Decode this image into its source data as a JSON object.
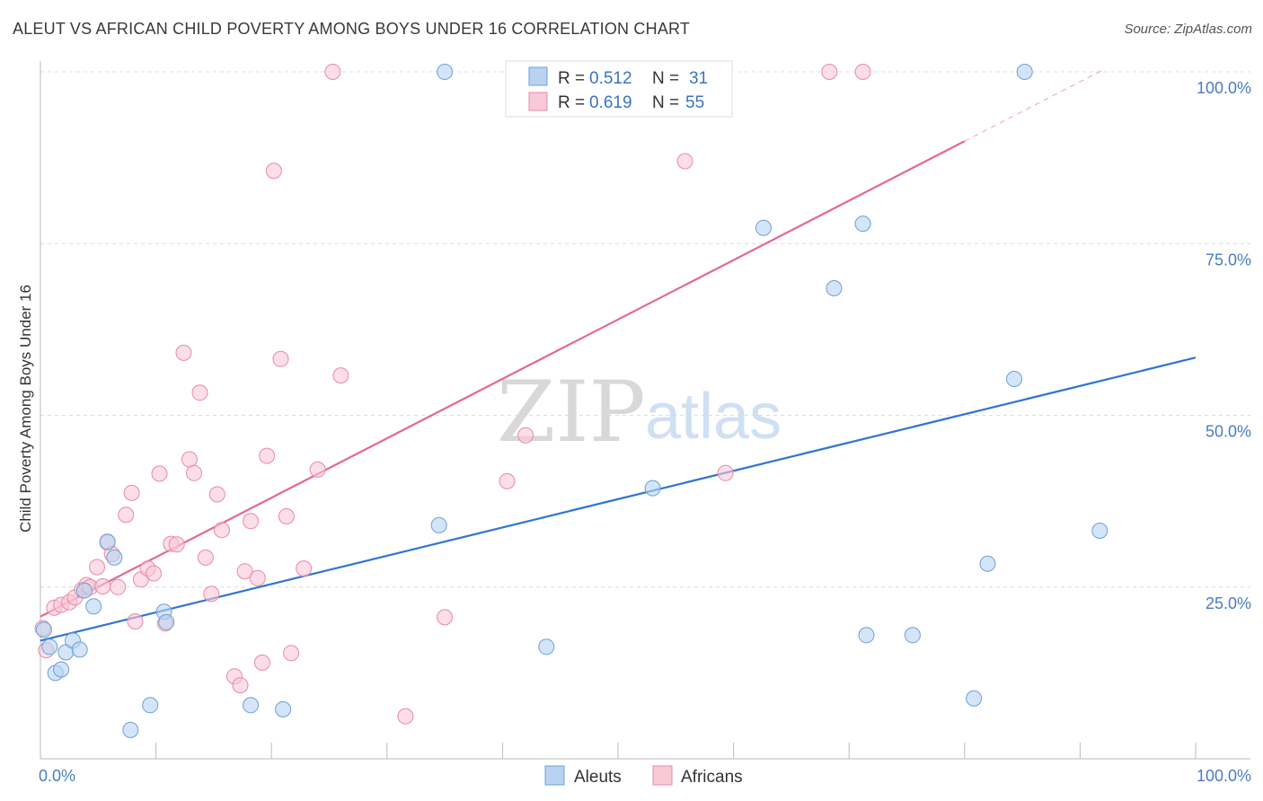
{
  "header": {
    "title": "ALEUT VS AFRICAN CHILD POVERTY AMONG BOYS UNDER 16 CORRELATION CHART",
    "source": "Source: ZipAtlas.com"
  },
  "watermark": {
    "zip": "ZIP",
    "atlas": "atlas"
  },
  "colors": {
    "aleut_fill": "#b8d3f2",
    "aleut_stroke": "#6f9fd8",
    "aleut_line": "#2f76d0",
    "african_fill": "#f9c8d7",
    "african_stroke": "#e88aa8",
    "african_line": "#e5688f",
    "grid": "#dcdcdc",
    "axis_text": "#4a7cc0"
  },
  "chart_data": {
    "type": "scatter",
    "title": "ALEUT VS AFRICAN CHILD POVERTY AMONG BOYS UNDER 16 CORRELATION CHART",
    "xlabel": "",
    "ylabel": "Child Poverty Among Boys Under 16",
    "xlim": [
      0,
      100
    ],
    "ylim": [
      0,
      100
    ],
    "x_tick_labels": [
      "0.0%",
      "100.0%"
    ],
    "y_tick_labels": [
      "25.0%",
      "50.0%",
      "75.0%",
      "100.0%"
    ],
    "y_ticks": [
      25,
      50,
      75,
      100
    ],
    "legend": {
      "position": "top-center",
      "rows": [
        {
          "r_label": "R =",
          "r_value": "0.512",
          "n_label": "N =",
          "n_value": "31"
        },
        {
          "r_label": "R =",
          "r_value": "0.619",
          "n_label": "N =",
          "n_value": "55"
        }
      ]
    },
    "bottom_legend": [
      "Aleuts",
      "Africans"
    ],
    "series": [
      {
        "name": "Aleuts",
        "r": 0.512,
        "n": 31,
        "trend": {
          "x": [
            0,
            100
          ],
          "y": [
            17.2,
            58.4
          ]
        },
        "points": [
          [
            0.3,
            18.8
          ],
          [
            0.8,
            16.3
          ],
          [
            1.3,
            12.5
          ],
          [
            1.8,
            13.0
          ],
          [
            2.2,
            15.5
          ],
          [
            2.8,
            17.2
          ],
          [
            3.4,
            15.9
          ],
          [
            3.8,
            24.5
          ],
          [
            4.6,
            22.2
          ],
          [
            5.8,
            31.6
          ],
          [
            6.4,
            29.3
          ],
          [
            7.8,
            4.2
          ],
          [
            9.5,
            7.8
          ],
          [
            10.7,
            21.4
          ],
          [
            10.9,
            19.9
          ],
          [
            18.2,
            7.8
          ],
          [
            21.0,
            7.2
          ],
          [
            34.5,
            34.0
          ],
          [
            35.0,
            100.0
          ],
          [
            43.8,
            16.3
          ],
          [
            53.0,
            39.4
          ],
          [
            62.6,
            77.3
          ],
          [
            68.7,
            68.5
          ],
          [
            71.2,
            77.9
          ],
          [
            71.5,
            18.0
          ],
          [
            75.5,
            18.0
          ],
          [
            80.8,
            8.8
          ],
          [
            82.0,
            28.4
          ],
          [
            84.3,
            55.3
          ],
          [
            85.2,
            100.0
          ],
          [
            91.7,
            33.2
          ]
        ]
      },
      {
        "name": "Africans",
        "r": 0.619,
        "n": 55,
        "trend": {
          "x": [
            0,
            80
          ],
          "y": [
            20.7,
            89.9
          ]
        },
        "trend_dashed": {
          "x": [
            80,
            92
          ],
          "y": [
            89.9,
            100.3
          ]
        },
        "points": [
          [
            0.2,
            19.0
          ],
          [
            0.5,
            15.8
          ],
          [
            1.2,
            22.0
          ],
          [
            1.8,
            22.4
          ],
          [
            2.5,
            22.8
          ],
          [
            3.0,
            23.5
          ],
          [
            3.6,
            24.6
          ],
          [
            4.0,
            25.3
          ],
          [
            4.3,
            25.0
          ],
          [
            4.9,
            27.9
          ],
          [
            5.4,
            25.1
          ],
          [
            5.8,
            31.5
          ],
          [
            6.2,
            29.8
          ],
          [
            6.7,
            25.0
          ],
          [
            7.4,
            35.5
          ],
          [
            7.9,
            38.7
          ],
          [
            8.2,
            20.0
          ],
          [
            8.7,
            26.1
          ],
          [
            9.3,
            27.7
          ],
          [
            9.8,
            27.0
          ],
          [
            10.3,
            41.5
          ],
          [
            10.8,
            19.7
          ],
          [
            11.3,
            31.3
          ],
          [
            11.8,
            31.2
          ],
          [
            12.4,
            59.1
          ],
          [
            12.9,
            43.6
          ],
          [
            13.3,
            41.6
          ],
          [
            13.8,
            53.3
          ],
          [
            14.3,
            29.3
          ],
          [
            14.8,
            24.0
          ],
          [
            15.3,
            38.5
          ],
          [
            15.7,
            33.3
          ],
          [
            16.8,
            12.0
          ],
          [
            17.3,
            10.7
          ],
          [
            17.7,
            27.3
          ],
          [
            18.2,
            34.6
          ],
          [
            18.8,
            26.3
          ],
          [
            19.2,
            14.0
          ],
          [
            19.6,
            44.1
          ],
          [
            20.2,
            85.6
          ],
          [
            20.8,
            58.2
          ],
          [
            21.3,
            35.3
          ],
          [
            21.7,
            15.4
          ],
          [
            22.8,
            27.7
          ],
          [
            24.0,
            42.1
          ],
          [
            25.3,
            100.0
          ],
          [
            26.0,
            55.8
          ],
          [
            31.6,
            6.2
          ],
          [
            35.0,
            20.6
          ],
          [
            40.4,
            40.4
          ],
          [
            42.0,
            47.1
          ],
          [
            55.8,
            87.0
          ],
          [
            59.3,
            41.6
          ],
          [
            68.3,
            100.0
          ],
          [
            71.2,
            100.0
          ]
        ]
      }
    ]
  }
}
